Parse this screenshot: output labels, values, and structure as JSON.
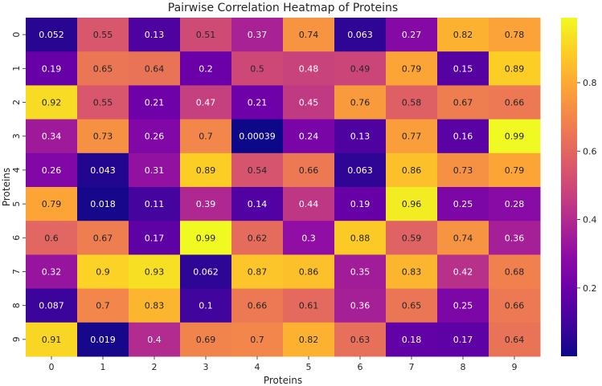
{
  "chart_data": {
    "type": "heatmap",
    "title": "Pairwise Correlation Heatmap of Proteins",
    "xlabel": "Proteins",
    "ylabel": "Proteins",
    "x_categories": [
      "0",
      "1",
      "2",
      "3",
      "4",
      "5",
      "6",
      "7",
      "8",
      "9"
    ],
    "y_categories": [
      "0",
      "1",
      "2",
      "3",
      "4",
      "5",
      "6",
      "7",
      "8",
      "9"
    ],
    "cells": [
      [
        0.052,
        0.55,
        0.13,
        0.51,
        0.37,
        0.74,
        0.063,
        0.27,
        0.82,
        0.78
      ],
      [
        0.19,
        0.65,
        0.64,
        0.2,
        0.5,
        0.48,
        0.49,
        0.79,
        0.15,
        0.89
      ],
      [
        0.92,
        0.55,
        0.21,
        0.47,
        0.21,
        0.45,
        0.76,
        0.58,
        0.67,
        0.66
      ],
      [
        0.34,
        0.73,
        0.26,
        0.7,
        0.00039,
        0.24,
        0.13,
        0.77,
        0.16,
        0.99
      ],
      [
        0.26,
        0.043,
        0.31,
        0.89,
        0.54,
        0.66,
        0.063,
        0.86,
        0.73,
        0.79
      ],
      [
        0.79,
        0.018,
        0.11,
        0.39,
        0.14,
        0.44,
        0.19,
        0.96,
        0.25,
        0.28
      ],
      [
        0.6,
        0.67,
        0.17,
        0.99,
        0.62,
        0.3,
        0.88,
        0.59,
        0.74,
        0.36
      ],
      [
        0.32,
        0.9,
        0.93,
        0.062,
        0.87,
        0.86,
        0.35,
        0.83,
        0.42,
        0.68
      ],
      [
        0.087,
        0.7,
        0.83,
        0.1,
        0.66,
        0.61,
        0.36,
        0.65,
        0.25,
        0.66
      ],
      [
        0.91,
        0.019,
        0.4,
        0.69,
        0.7,
        0.82,
        0.63,
        0.18,
        0.17,
        0.64
      ]
    ],
    "labels": [
      [
        "0.052",
        "0.55",
        "0.13",
        "0.51",
        "0.37",
        "0.74",
        "0.063",
        "0.27",
        "0.82",
        "0.78"
      ],
      [
        "0.19",
        "0.65",
        "0.64",
        "0.2",
        "0.5",
        "0.48",
        "0.49",
        "0.79",
        "0.15",
        "0.89"
      ],
      [
        "0.92",
        "0.55",
        "0.21",
        "0.47",
        "0.21",
        "0.45",
        "0.76",
        "0.58",
        "0.67",
        "0.66"
      ],
      [
        "0.34",
        "0.73",
        "0.26",
        "0.7",
        "0.00039",
        "0.24",
        "0.13",
        "0.77",
        "0.16",
        "0.99"
      ],
      [
        "0.26",
        "0.043",
        "0.31",
        "0.89",
        "0.54",
        "0.66",
        "0.063",
        "0.86",
        "0.73",
        "0.79"
      ],
      [
        "0.79",
        "0.018",
        "0.11",
        "0.39",
        "0.14",
        "0.44",
        "0.19",
        "0.96",
        "0.25",
        "0.28"
      ],
      [
        "0.6",
        "0.67",
        "0.17",
        "0.99",
        "0.62",
        "0.3",
        "0.88",
        "0.59",
        "0.74",
        "0.36"
      ],
      [
        "0.32",
        "0.9",
        "0.93",
        "0.062",
        "0.87",
        "0.86",
        "0.35",
        "0.83",
        "0.42",
        "0.68"
      ],
      [
        "0.087",
        "0.7",
        "0.83",
        "0.1",
        "0.66",
        "0.61",
        "0.36",
        "0.65",
        "0.25",
        "0.66"
      ],
      [
        "0.91",
        "0.019",
        "0.4",
        "0.69",
        "0.7",
        "0.82",
        "0.63",
        "0.18",
        "0.17",
        "0.64"
      ]
    ],
    "colormap": "plasma",
    "colorbar": {
      "range": [
        0.00039,
        0.99
      ],
      "ticks": [
        0.2,
        0.4,
        0.6,
        0.8
      ],
      "tick_labels": [
        "0.2",
        "0.4",
        "0.6",
        "0.8"
      ]
    },
    "grid": false,
    "legend": "colorbar-right"
  }
}
